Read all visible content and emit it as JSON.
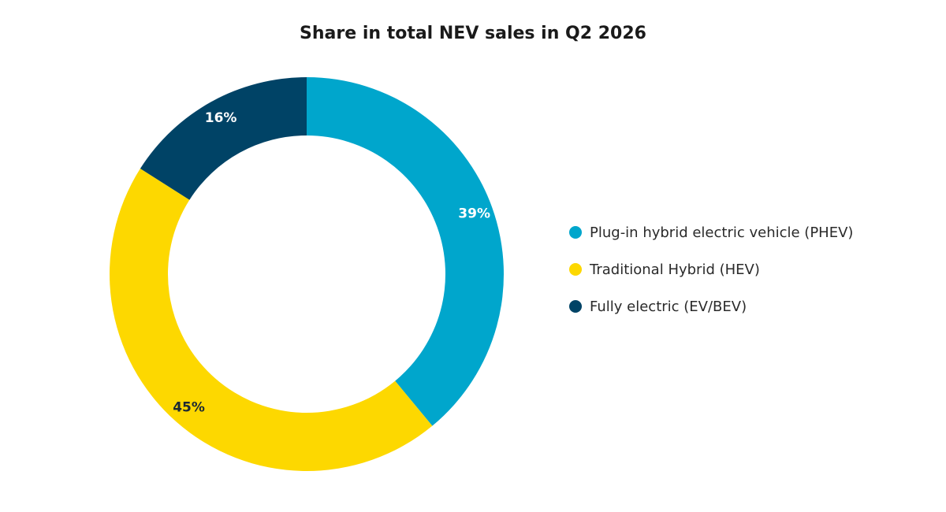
{
  "chart_data": {
    "type": "pie",
    "variant": "donut",
    "title": "Share in total NEV sales in Q2 2026",
    "slices": [
      {
        "name": "Plug-in hybrid electric vehicle (PHEV)",
        "value": 39,
        "label": "39%",
        "color": "#00a6cc",
        "label_color": "#ffffff"
      },
      {
        "name": "Traditional Hybrid (HEV)",
        "value": 45,
        "label": "45%",
        "color": "#fdd800",
        "label_color": "#1c2a33"
      },
      {
        "name": "Fully electric (EV/BEV)",
        "value": 16,
        "label": "16%",
        "color": "#004366",
        "label_color": "#ffffff"
      }
    ],
    "legend": {
      "position": "right",
      "entries": [
        "Plug-in hybrid electric vehicle (PHEV)",
        "Traditional Hybrid (HEV)",
        "Fully electric (EV/BEV)"
      ]
    }
  }
}
